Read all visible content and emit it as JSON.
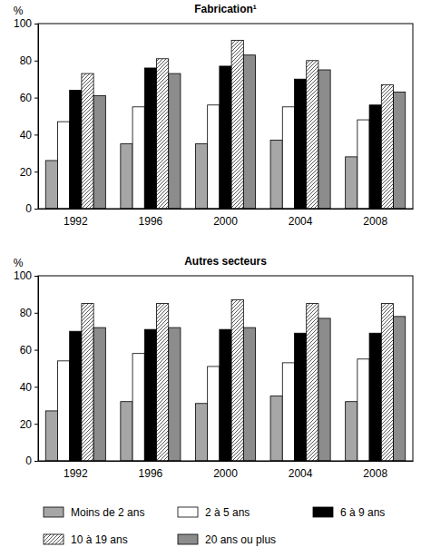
{
  "chart_data": [
    {
      "type": "bar",
      "title": "Fabrication¹",
      "ylabel": "%",
      "categories": [
        "1992",
        "1996",
        "2000",
        "2004",
        "2008"
      ],
      "series": [
        {
          "color": "#a6a6a6",
          "values": [
            26,
            35,
            35,
            37,
            28
          ]
        },
        {
          "color": "#ffffff",
          "values": [
            47,
            55,
            56,
            55,
            48
          ]
        },
        {
          "color": "#000000",
          "values": [
            64,
            76,
            77,
            70,
            56
          ]
        },
        {
          "color": "#595959",
          "marker": "hatch",
          "values": [
            73,
            81,
            91,
            80,
            67
          ]
        },
        {
          "color": "#8c8c8c",
          "values": [
            61,
            73,
            83,
            75,
            63
          ]
        }
      ],
      "ylim": [
        0,
        100
      ],
      "yticks": [
        0,
        20,
        40,
        60,
        80,
        100
      ],
      "grid": false
    },
    {
      "type": "bar",
      "title": "Autres secteurs",
      "ylabel": "%",
      "categories": [
        "1992",
        "1996",
        "2000",
        "2004",
        "2008"
      ],
      "series": [
        {
          "name": "Moins de 2 ans",
          "color": "#a6a6a6",
          "values": [
            27,
            32,
            31,
            35,
            32
          ]
        },
        {
          "name": "2 à 5 ans",
          "color": "#ffffff",
          "values": [
            54,
            58,
            51,
            53,
            55
          ]
        },
        {
          "name": "6 à 9 ans",
          "color": "#000000",
          "values": [
            70,
            71,
            71,
            69,
            69
          ]
        },
        {
          "name": "10 à 19 ans",
          "color": "#595959",
          "marker": "hatch",
          "values": [
            85,
            85,
            87,
            85,
            85
          ]
        },
        {
          "name": "20 ans ou plus",
          "color": "#8c8c8c",
          "values": [
            72,
            72,
            72,
            77,
            78
          ]
        }
      ],
      "ylim": [
        0,
        100
      ],
      "yticks": [
        0,
        20,
        40,
        60,
        80,
        100
      ],
      "grid": false,
      "legend": "bottom"
    }
  ]
}
